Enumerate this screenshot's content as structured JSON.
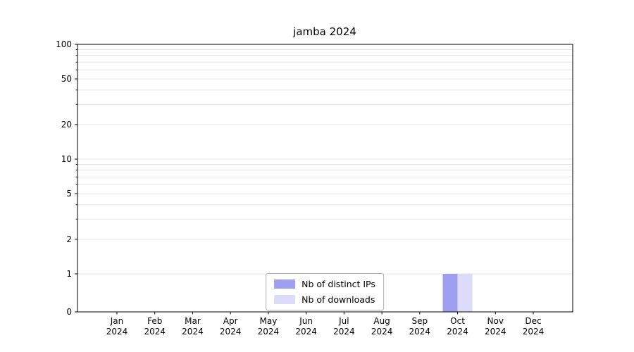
{
  "chart_data": {
    "type": "bar",
    "title": "jamba 2024",
    "scale": "symlog",
    "grid": "horizontal",
    "ylim": [
      0,
      100
    ],
    "yticks": [
      0,
      1,
      2,
      5,
      10,
      20,
      50,
      100
    ],
    "minor_gridlines": [
      3,
      4,
      6,
      7,
      8,
      9,
      30,
      40,
      60,
      70,
      80,
      90
    ],
    "categories": [
      {
        "m": "Jan",
        "y": "2024"
      },
      {
        "m": "Feb",
        "y": "2024"
      },
      {
        "m": "Mar",
        "y": "2024"
      },
      {
        "m": "Apr",
        "y": "2024"
      },
      {
        "m": "May",
        "y": "2024"
      },
      {
        "m": "Jun",
        "y": "2024"
      },
      {
        "m": "Jul",
        "y": "2024"
      },
      {
        "m": "Aug",
        "y": "2024"
      },
      {
        "m": "Sep",
        "y": "2024"
      },
      {
        "m": "Oct",
        "y": "2024"
      },
      {
        "m": "Nov",
        "y": "2024"
      },
      {
        "m": "Dec",
        "y": "2024"
      }
    ],
    "series": [
      {
        "name": "Nb of distinct IPs",
        "color": "#9f9ff1",
        "values": [
          0,
          0,
          0,
          0,
          0,
          0,
          0,
          0,
          0,
          1,
          0,
          0
        ]
      },
      {
        "name": "Nb of downloads",
        "color": "#dcdcfa",
        "values": [
          0,
          0,
          0,
          0,
          0,
          0,
          0,
          0,
          0,
          1,
          0,
          0
        ]
      }
    ],
    "legend_position": "bottom-center",
    "axis_color": "#000000",
    "gridline_color": "#e6e6e6",
    "tick_label_color": "#000000",
    "background": "#ffffff"
  }
}
